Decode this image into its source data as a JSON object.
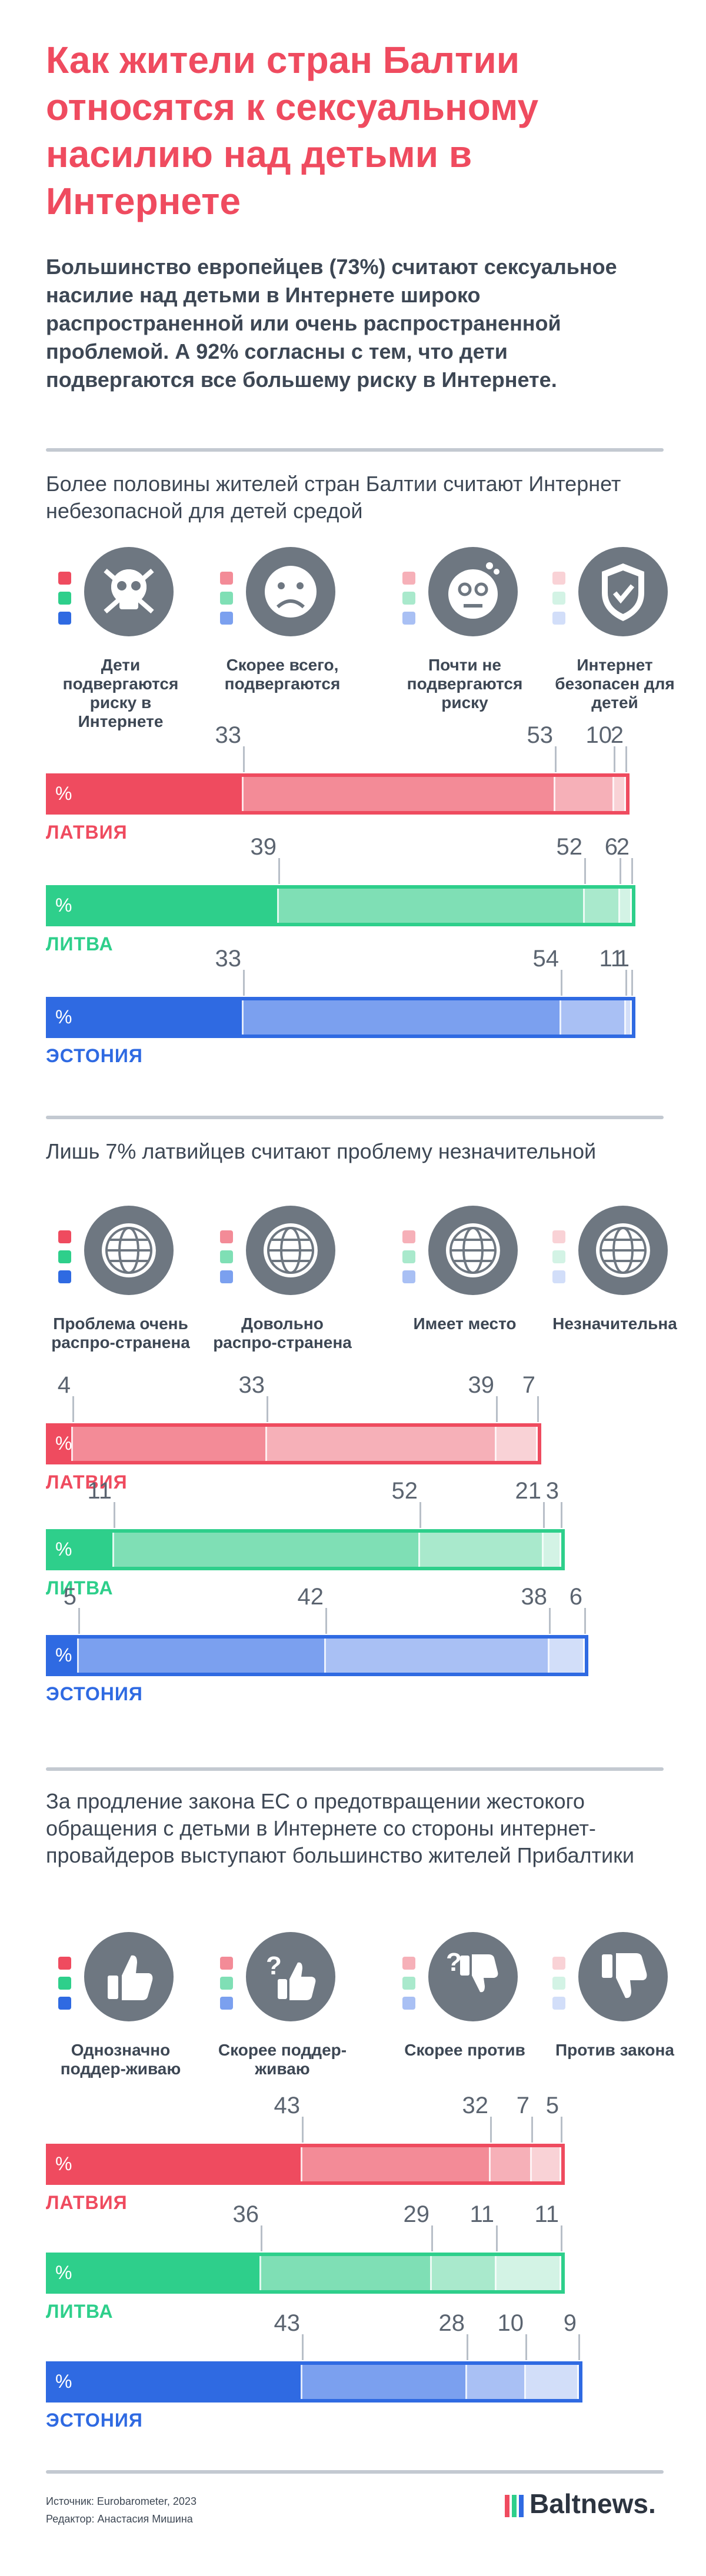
{
  "title": "Как жители стран Балтии относятся к сексуальному насилию над детьми в Интернете",
  "intro": "Большинство европейцев (73%) считают сексуальное насилие над детьми в Интернете широко распространенной или очень распространенной проблемой. А 92% согласны с тем, что дети подвергаются все большему риску в Интернете.",
  "colors": {
    "title": "#ef4b5f",
    "latvia": [
      "#ef4b5f",
      "#f38b97",
      "#f6b0b8",
      "#f9d2d6"
    ],
    "lithuania": [
      "#2ecf8b",
      "#7fdfb5",
      "#a9e9cc",
      "#d3f3e5"
    ],
    "estonia": [
      "#2f6ae2",
      "#7ba0ef",
      "#a9c0f4",
      "#d2def9"
    ],
    "icon": "#6e7781"
  },
  "sections": [
    {
      "title": "Более половины жителей стран Балтии считают Интернет небезопасной для детей средой",
      "categories": [
        {
          "label": "Дети подвергаются риску в Интернете",
          "icon": "skull-icon"
        },
        {
          "label": "Скорее всего, подвергаются",
          "icon": "sad-face-icon"
        },
        {
          "label": "Почти не подвергаются риску",
          "icon": "neutral-face-icon"
        },
        {
          "label": "Интернет безопасен для детей",
          "icon": "shield-check-icon"
        }
      ],
      "percent_sign": "%",
      "countries": [
        {
          "name": "ЛАТВИЯ",
          "values": [
            33,
            53,
            10,
            2
          ]
        },
        {
          "name": "ЛИТВА",
          "values": [
            39,
            52,
            6,
            2
          ]
        },
        {
          "name": "ЭСТОНИЯ",
          "values": [
            33,
            54,
            11,
            1
          ]
        }
      ]
    },
    {
      "title": "Лишь 7% латвийцев считают проблему незначительной",
      "categories": [
        {
          "label": "Проблема очень распро-странена",
          "icon": "globe-icon"
        },
        {
          "label": "Довольно распро-странена",
          "icon": "globe-icon"
        },
        {
          "label": "Имеет место",
          "icon": "globe-icon"
        },
        {
          "label": "Незначительна",
          "icon": "globe-icon"
        }
      ],
      "percent_sign": "%",
      "countries": [
        {
          "name": "ЛАТВИЯ",
          "values": [
            4,
            33,
            39,
            7
          ]
        },
        {
          "name": "ЛИТВА",
          "values": [
            11,
            52,
            21,
            3
          ]
        },
        {
          "name": "ЭСТОНИЯ",
          "values": [
            5,
            42,
            38,
            6
          ]
        }
      ]
    },
    {
      "title": "За продление закона ЕС о предотвращении жестокого обращения с детьми в Интернете со стороны интернет-провайдеров выступают большинство жителей Прибалтики",
      "categories": [
        {
          "label": "Однозначно поддер-живаю",
          "icon": "thumbs-up-icon"
        },
        {
          "label": "Скорее поддер-живаю",
          "icon": "thumbs-up-question-icon"
        },
        {
          "label": "Скорее против",
          "icon": "thumbs-down-question-icon"
        },
        {
          "label": "Против закона",
          "icon": "thumbs-down-icon"
        }
      ],
      "percent_sign": "%",
      "countries": [
        {
          "name": "ЛАТВИЯ",
          "values": [
            43,
            32,
            7,
            5
          ]
        },
        {
          "name": "ЛИТВА",
          "values": [
            36,
            29,
            11,
            11
          ]
        },
        {
          "name": "ЭСТОНИЯ",
          "values": [
            43,
            28,
            10,
            9
          ]
        }
      ]
    }
  ],
  "chart_data": [
    {
      "type": "bar",
      "title": "Более половины жителей стран Балтии считают Интернет небезопасной для детей средой",
      "categories": [
        "ЛАТВИЯ",
        "ЛИТВА",
        "ЭСТОНИЯ"
      ],
      "series": [
        {
          "name": "Дети подвергаются риску в Интернете",
          "values": [
            33,
            39,
            33
          ]
        },
        {
          "name": "Скорее всего, подвергаются",
          "values": [
            53,
            52,
            54
          ]
        },
        {
          "name": "Почти не подвергаются риску",
          "values": [
            10,
            6,
            11
          ]
        },
        {
          "name": "Интернет безопасен для детей",
          "values": [
            2,
            2,
            1
          ]
        }
      ],
      "stacked": true,
      "orientation": "horizontal",
      "xlim": [
        0,
        100
      ]
    },
    {
      "type": "bar",
      "title": "Лишь 7% латвийцев считают проблему незначительной",
      "categories": [
        "ЛАТВИЯ",
        "ЛИТВА",
        "ЭСТОНИЯ"
      ],
      "series": [
        {
          "name": "Проблема очень распро-странена",
          "values": [
            4,
            11,
            5
          ]
        },
        {
          "name": "Довольно распро-странена",
          "values": [
            33,
            52,
            42
          ]
        },
        {
          "name": "Имеет место",
          "values": [
            39,
            21,
            38
          ]
        },
        {
          "name": "Незначительна",
          "values": [
            7,
            3,
            6
          ]
        }
      ],
      "stacked": true,
      "orientation": "horizontal",
      "xlim": [
        0,
        100
      ]
    },
    {
      "type": "bar",
      "title": "За продление закона ЕС о предотвращении жестокого обращения с детьми в Интернете со стороны интернет-провайдеров выступают большинство жителей Прибалтики",
      "categories": [
        "ЛАТВИЯ",
        "ЛИТВА",
        "ЭСТОНИЯ"
      ],
      "series": [
        {
          "name": "Однозначно поддер-живаю",
          "values": [
            43,
            36,
            43
          ]
        },
        {
          "name": "Скорее поддер-живаю",
          "values": [
            32,
            29,
            28
          ]
        },
        {
          "name": "Скорее против",
          "values": [
            7,
            11,
            10
          ]
        },
        {
          "name": "Против закона",
          "values": [
            5,
            11,
            9
          ]
        }
      ],
      "stacked": true,
      "orientation": "horizontal",
      "xlim": [
        0,
        100
      ]
    }
  ],
  "footer": {
    "source": "Источник: Eurobarometer, 2023",
    "editor": "Редактор: Анастасия Мишина",
    "logo": "Baltnews."
  }
}
